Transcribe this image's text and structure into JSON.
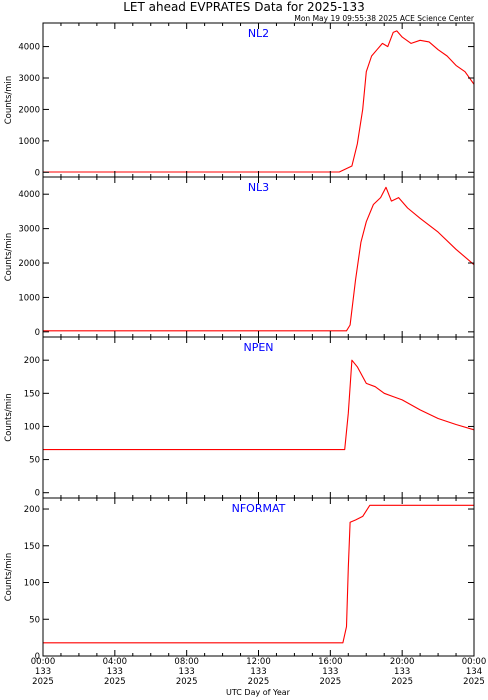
{
  "header": {
    "title": "LET ahead EVPRATES Data for 2025-133",
    "timestamp": "Mon May 19 09:55:38 2025 ACE Science Center"
  },
  "colors": {
    "series": "#ff0000",
    "panel_label": "#0000ff",
    "frame": "#000000"
  },
  "chart_data": [
    {
      "type": "line",
      "title": "NL2",
      "ylabel": "Counts/min",
      "ylim": [
        -150,
        4750
      ],
      "yticks": [
        0,
        1000,
        2000,
        3000,
        4000
      ],
      "series": [
        {
          "points": [
            [
              0,
              10
            ],
            [
              16.5,
              10
            ],
            [
              17.2,
              200
            ],
            [
              17.5,
              900
            ],
            [
              17.8,
              2000
            ],
            [
              18.0,
              3200
            ],
            [
              18.3,
              3700
            ],
            [
              18.6,
              3900
            ],
            [
              18.9,
              4100
            ],
            [
              19.2,
              4000
            ],
            [
              19.5,
              4450
            ],
            [
              19.7,
              4500
            ],
            [
              20.0,
              4300
            ],
            [
              20.5,
              4100
            ],
            [
              21.0,
              4200
            ],
            [
              21.5,
              4150
            ],
            [
              22.0,
              3900
            ],
            [
              22.5,
              3700
            ],
            [
              23.0,
              3400
            ],
            [
              23.5,
              3200
            ],
            [
              24.0,
              2800
            ]
          ]
        }
      ]
    },
    {
      "type": "line",
      "title": "NL3",
      "ylabel": "Counts/min",
      "ylim": [
        -150,
        4500
      ],
      "yticks": [
        0,
        1000,
        2000,
        3000,
        4000
      ],
      "series": [
        {
          "points": [
            [
              0,
              30
            ],
            [
              16.9,
              30
            ],
            [
              17.1,
              200
            ],
            [
              17.4,
              1500
            ],
            [
              17.7,
              2600
            ],
            [
              18.0,
              3200
            ],
            [
              18.4,
              3700
            ],
            [
              18.8,
              3900
            ],
            [
              19.1,
              4200
            ],
            [
              19.4,
              3800
            ],
            [
              19.8,
              3900
            ],
            [
              20.3,
              3600
            ],
            [
              21.0,
              3300
            ],
            [
              22.0,
              2900
            ],
            [
              23.0,
              2400
            ],
            [
              24.0,
              1950
            ]
          ]
        }
      ]
    },
    {
      "type": "line",
      "title": "NPEN",
      "ylabel": "Counts/min",
      "ylim": [
        -8,
        235
      ],
      "yticks": [
        0,
        50,
        100,
        150,
        200
      ],
      "series": [
        {
          "points": [
            [
              0,
              65
            ],
            [
              16.8,
              65
            ],
            [
              17.0,
              120
            ],
            [
              17.2,
              200
            ],
            [
              17.5,
              190
            ],
            [
              18.0,
              165
            ],
            [
              18.5,
              160
            ],
            [
              19.0,
              150
            ],
            [
              19.5,
              145
            ],
            [
              20.0,
              140
            ],
            [
              21.0,
              125
            ],
            [
              22.0,
              112
            ],
            [
              23.0,
              103
            ],
            [
              24.0,
              95
            ]
          ]
        }
      ]
    },
    {
      "type": "line",
      "title": "NFORMAT",
      "ylabel": "Counts/min",
      "ylim": [
        0,
        215
      ],
      "yticks": [
        0,
        50,
        100,
        150,
        200
      ],
      "series": [
        {
          "points": [
            [
              0,
              18
            ],
            [
              16.7,
              18
            ],
            [
              16.9,
              40
            ],
            [
              17.0,
              120
            ],
            [
              17.1,
              182
            ],
            [
              17.4,
              185
            ],
            [
              17.8,
              190
            ],
            [
              18.2,
              205
            ],
            [
              19.0,
              205
            ],
            [
              20.0,
              205
            ],
            [
              21.0,
              205
            ],
            [
              22.0,
              205
            ],
            [
              23.0,
              205
            ],
            [
              24.0,
              205
            ]
          ]
        }
      ]
    }
  ],
  "x_axis": {
    "label": "UTC Day of Year",
    "ticks": [
      {
        "hours": 0,
        "time": "00:00",
        "day": "133",
        "year": "2025"
      },
      {
        "hours": 4,
        "time": "04:00",
        "day": "133",
        "year": "2025"
      },
      {
        "hours": 8,
        "time": "08:00",
        "day": "133",
        "year": "2025"
      },
      {
        "hours": 12,
        "time": "12:00",
        "day": "133",
        "year": "2025"
      },
      {
        "hours": 16,
        "time": "16:00",
        "day": "133",
        "year": "2025"
      },
      {
        "hours": 20,
        "time": "20:00",
        "day": "133",
        "year": "2025"
      },
      {
        "hours": 24,
        "time": "00:00",
        "day": "134",
        "year": "2025"
      }
    ],
    "xlim": [
      0,
      24
    ]
  }
}
